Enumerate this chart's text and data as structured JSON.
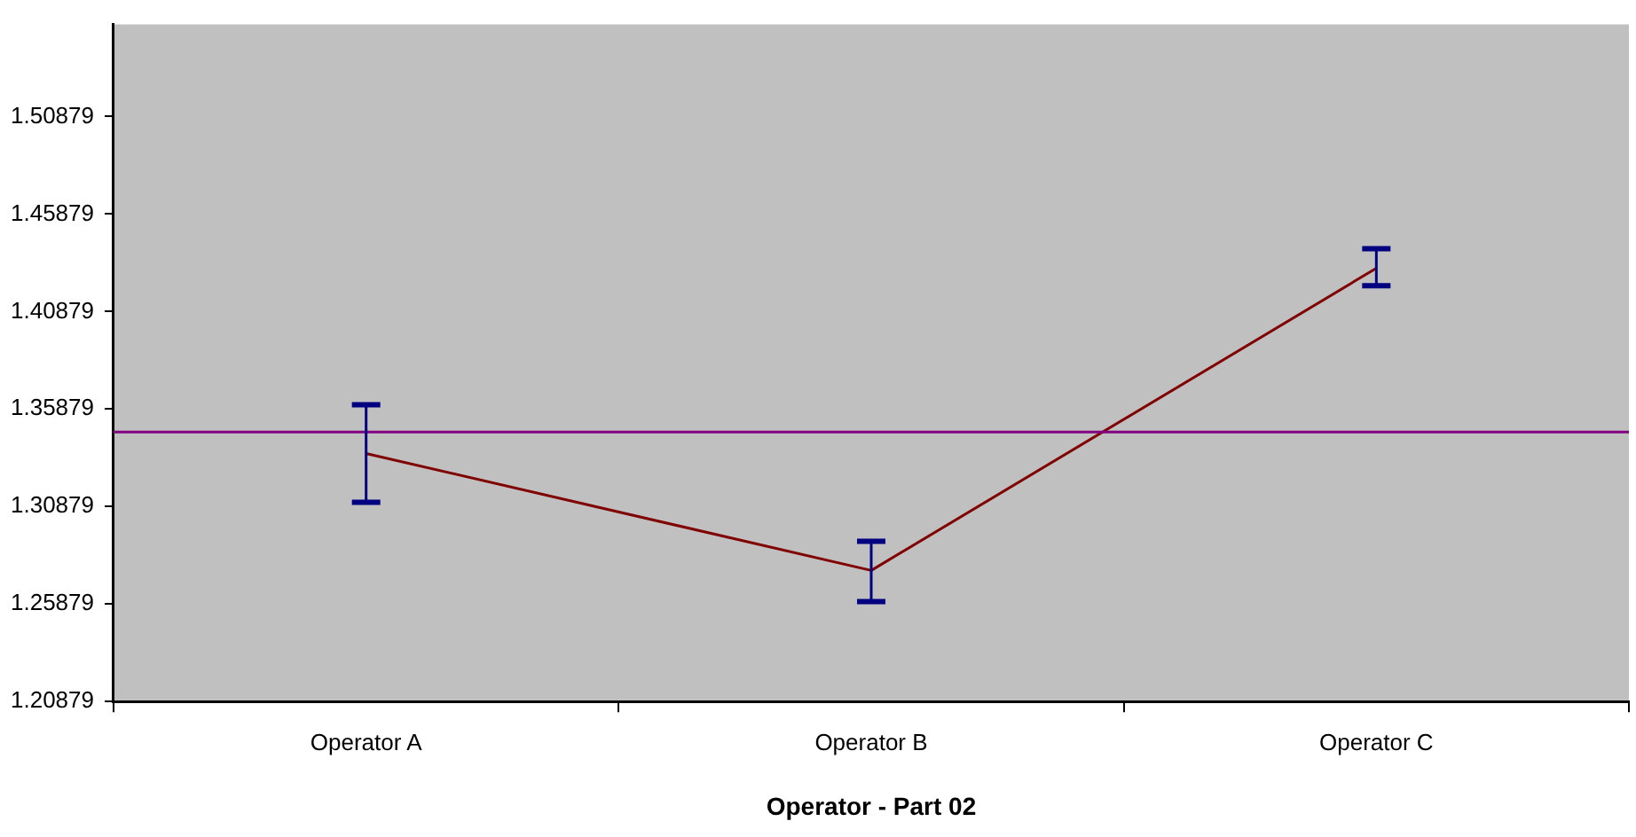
{
  "chart_data": {
    "type": "line",
    "xlabel": "Operator - Part 02",
    "categories": [
      "Operator A",
      "Operator B",
      "Operator C"
    ],
    "series": [
      {
        "color": "#800000",
        "values": [
          1.336,
          1.276,
          1.431
        ],
        "errors": [
          [
            1.311,
            1.361
          ],
          [
            1.26,
            1.291
          ],
          [
            1.422,
            1.441
          ]
        ]
      }
    ],
    "ylim": [
      1.20879,
      1.556
    ],
    "yticks": [
      1.20879,
      1.25879,
      1.30879,
      1.35879,
      1.40879,
      1.45879,
      1.50879
    ],
    "ref_lines": [
      {
        "axis": "y",
        "value": 1.347,
        "color": "#800080"
      }
    ],
    "grid": false,
    "legend": false,
    "marker": "none",
    "line_style": "solid"
  }
}
